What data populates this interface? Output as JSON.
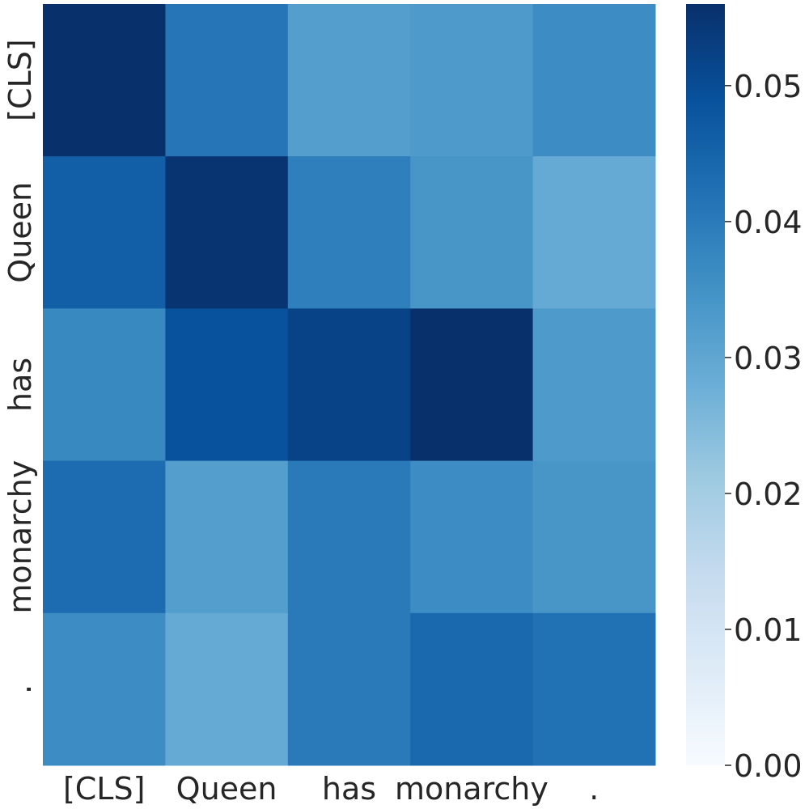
{
  "chart_data": {
    "type": "heatmap",
    "title": "",
    "xlabel": "",
    "ylabel": "",
    "x_categories": [
      "[CLS]",
      "Queen",
      "has",
      "monarchy",
      "."
    ],
    "y_categories": [
      "[CLS]",
      "Queen",
      "has",
      "monarchy",
      "."
    ],
    "values": [
      [
        0.056,
        0.041,
        0.032,
        0.033,
        0.036
      ],
      [
        0.046,
        0.055,
        0.039,
        0.034,
        0.029
      ],
      [
        0.037,
        0.049,
        0.052,
        0.056,
        0.033
      ],
      [
        0.043,
        0.032,
        0.04,
        0.036,
        0.034
      ],
      [
        0.036,
        0.029,
        0.04,
        0.044,
        0.042
      ]
    ],
    "colorbar": {
      "range": [
        0.0,
        0.056
      ],
      "ticks": [
        0.0,
        0.01,
        0.02,
        0.03,
        0.04,
        0.05
      ],
      "tick_labels": [
        "0.00",
        "0.01",
        "0.02",
        "0.03",
        "0.04",
        "0.05"
      ],
      "colormap": "Blues"
    },
    "grid": false,
    "legend": "colorbar-right"
  }
}
